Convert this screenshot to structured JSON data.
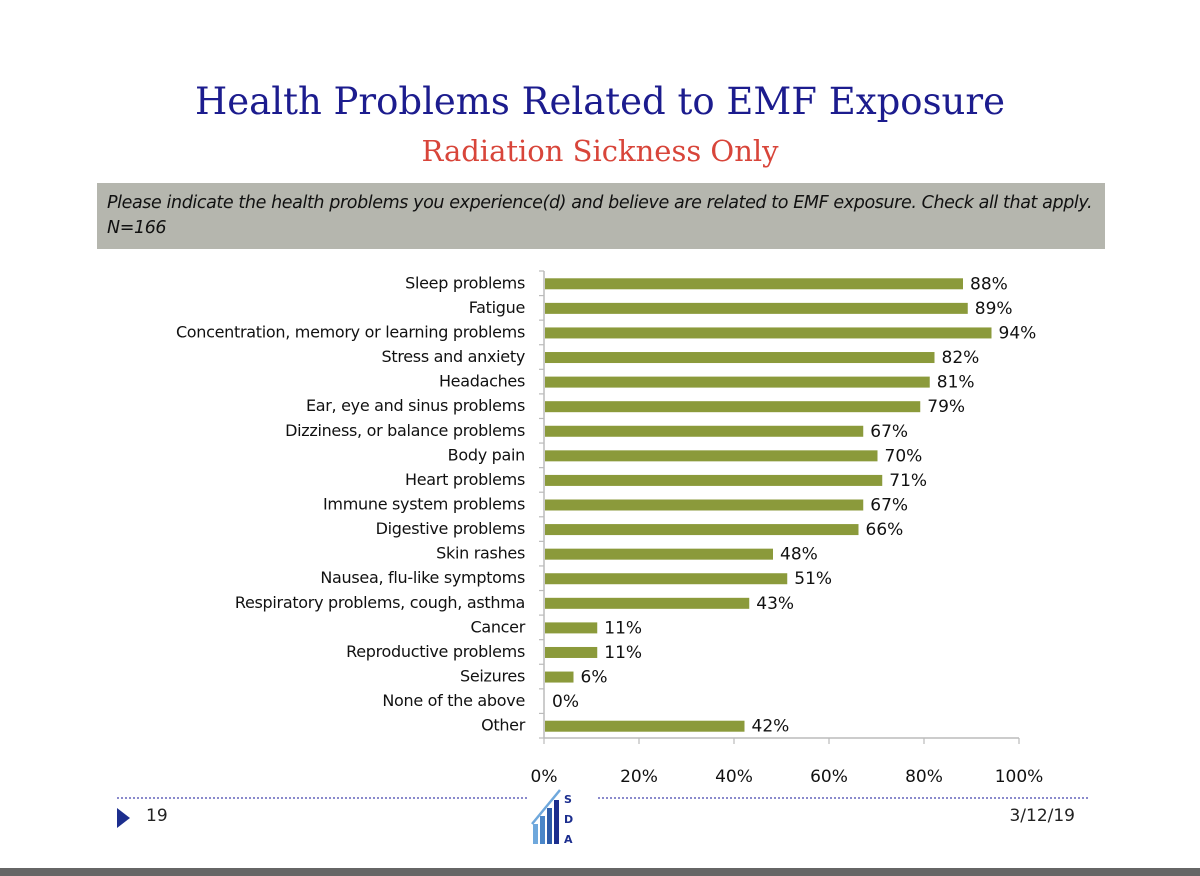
{
  "slide": {
    "page_number": "19",
    "date": "3/12/19",
    "logo_text": "SDA"
  },
  "colors": {
    "title": "#1c1c8e",
    "subtitle": "#d8453a",
    "bar": "#8b9a3b",
    "question_box": "#b5b6ae"
  },
  "chart_data": {
    "type": "bar",
    "orientation": "horizontal",
    "title": "Health Problems Related to EMF Exposure",
    "subtitle": "Radiation Sickness Only",
    "question": "Please indicate the health problems you experience(d) and believe are related to EMF exposure. Check all that apply. N=166",
    "categories": [
      "Sleep problems",
      "Fatigue",
      "Concentration, memory or learning problems",
      "Stress and anxiety",
      "Headaches",
      "Ear, eye and sinus problems",
      "Dizziness, or balance problems",
      "Body pain",
      "Heart problems",
      "Immune system problems",
      "Digestive problems",
      "Skin rashes",
      "Nausea, flu-like symptoms",
      "Respiratory problems, cough, asthma",
      "Cancer",
      "Reproductive problems",
      "Seizures",
      "None of the above",
      "Other"
    ],
    "values": [
      88,
      89,
      94,
      82,
      81,
      79,
      67,
      70,
      71,
      67,
      66,
      48,
      51,
      43,
      11,
      11,
      6,
      0,
      42
    ],
    "data_labels": [
      "88%",
      "89%",
      "94%",
      "82%",
      "81%",
      "79%",
      "67%",
      "70%",
      "71%",
      "67%",
      "66%",
      "48%",
      "51%",
      "43%",
      "11%",
      "11%",
      "6%",
      "0%",
      "42%"
    ],
    "xlim": [
      0,
      100
    ],
    "xticks": [
      "0%",
      "20%",
      "40%",
      "60%",
      "80%",
      "100%"
    ],
    "grid": false,
    "legend": "none"
  }
}
